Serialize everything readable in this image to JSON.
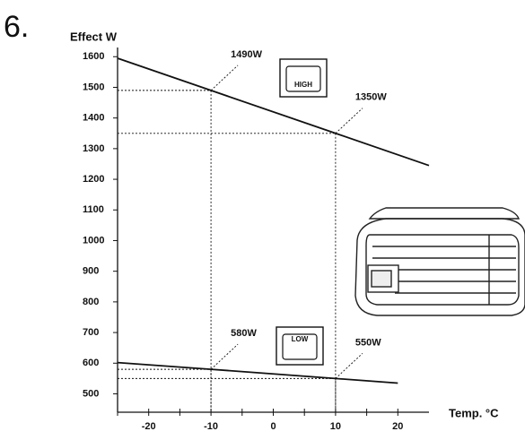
{
  "chart_data": {
    "type": "line",
    "title": "6.",
    "y_label": "Effect W",
    "x_label": "Temp. °C",
    "xlim": [
      -25,
      25
    ],
    "xticks": [
      -20,
      -10,
      0,
      10,
      20
    ],
    "xminorticks": [
      -25,
      -15,
      -5,
      5,
      15
    ],
    "ylim": [
      440,
      1630
    ],
    "yticks": [
      500,
      600,
      700,
      800,
      900,
      1000,
      1100,
      1200,
      1300,
      1400,
      1500,
      1600
    ],
    "color": "#111111",
    "series": [
      {
        "name": "HIGH",
        "x": [
          -25,
          -10,
          10,
          25
        ],
        "values": [
          1595,
          1490,
          1350,
          1245
        ]
      },
      {
        "name": "LOW",
        "x": [
          -25,
          -10,
          10,
          20
        ],
        "values": [
          602,
          580,
          550,
          535
        ]
      }
    ],
    "annotations": [
      {
        "text": "1490W",
        "x": -10,
        "y": 1490
      },
      {
        "text": "1350W",
        "x": 10,
        "y": 1350
      },
      {
        "text": "580W",
        "x": -10,
        "y": 580
      },
      {
        "text": "550W",
        "x": 10,
        "y": 550
      }
    ]
  }
}
